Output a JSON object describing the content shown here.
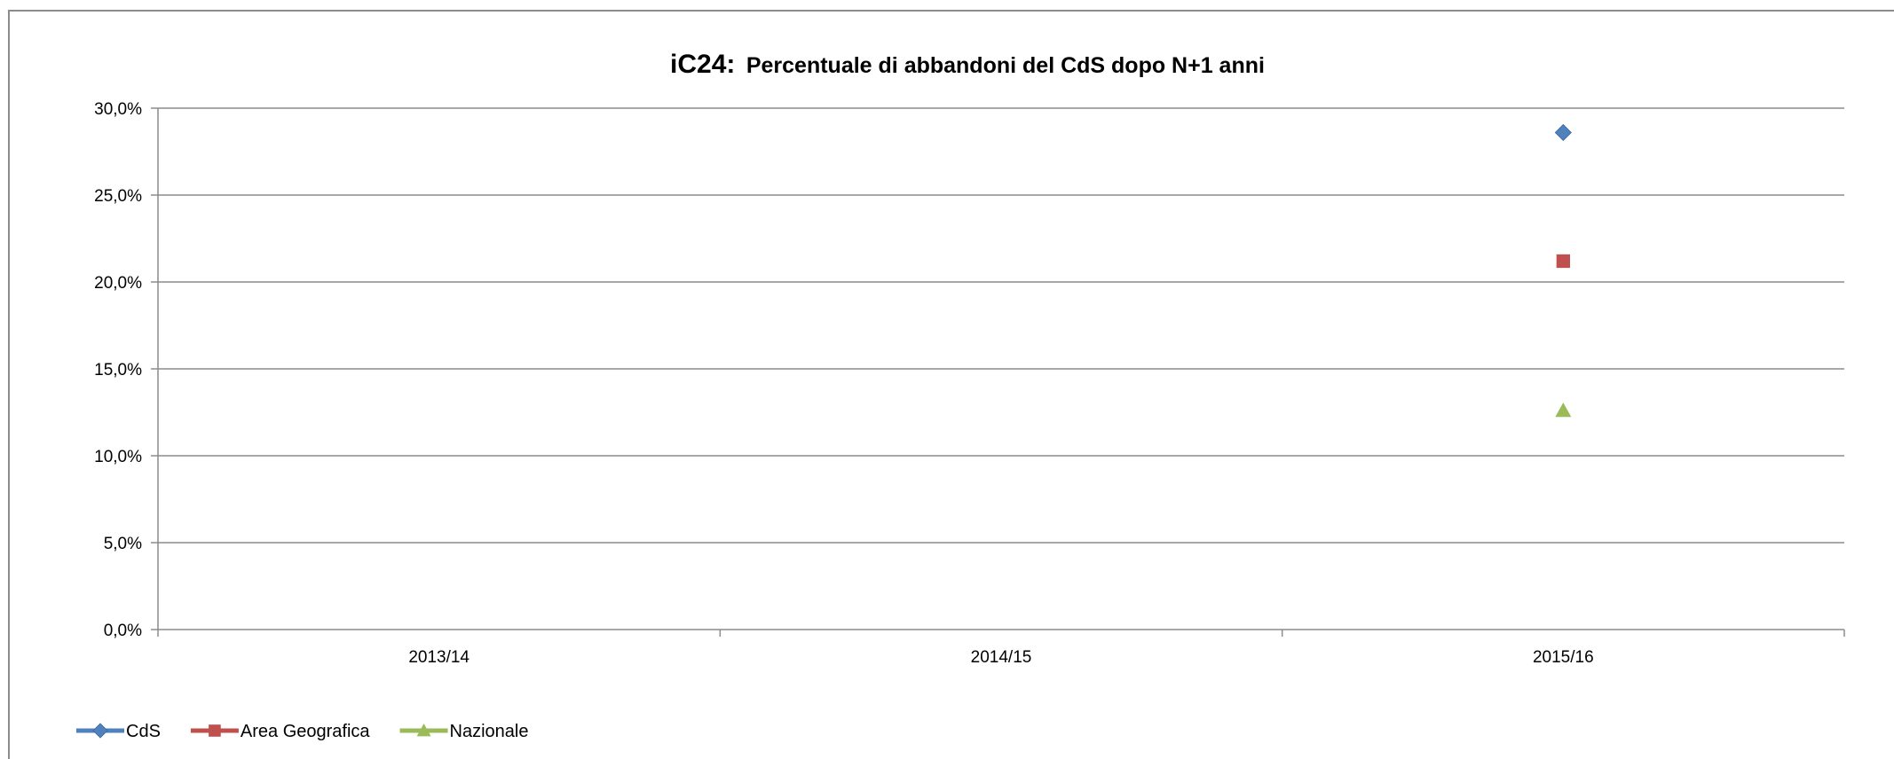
{
  "chart_data": {
    "type": "line",
    "title": {
      "prefix": "iC24:",
      "text": "Percentuale di abbandoni del CdS dopo N+1 anni"
    },
    "xlabel": "",
    "ylabel": "",
    "categories": [
      "2013/14",
      "2014/15",
      "2015/16"
    ],
    "y_ticks": [
      "0,0%",
      "5,0%",
      "10,0%",
      "15,0%",
      "20,0%",
      "25,0%",
      "30,0%"
    ],
    "y_tick_values": [
      0,
      5,
      10,
      15,
      20,
      25,
      30
    ],
    "ylim": [
      0,
      30
    ],
    "grid": true,
    "legend_position": "bottom-left",
    "series": [
      {
        "name": "CdS",
        "values": [
          null,
          null,
          28.6
        ],
        "color": "#4F81BD",
        "marker": "diamond"
      },
      {
        "name": "Area Geografica",
        "values": [
          null,
          null,
          21.2
        ],
        "color": "#C0504D",
        "marker": "square"
      },
      {
        "name": "Nazionale",
        "values": [
          null,
          null,
          12.6
        ],
        "color": "#9BBB59",
        "marker": "triangle"
      }
    ]
  }
}
